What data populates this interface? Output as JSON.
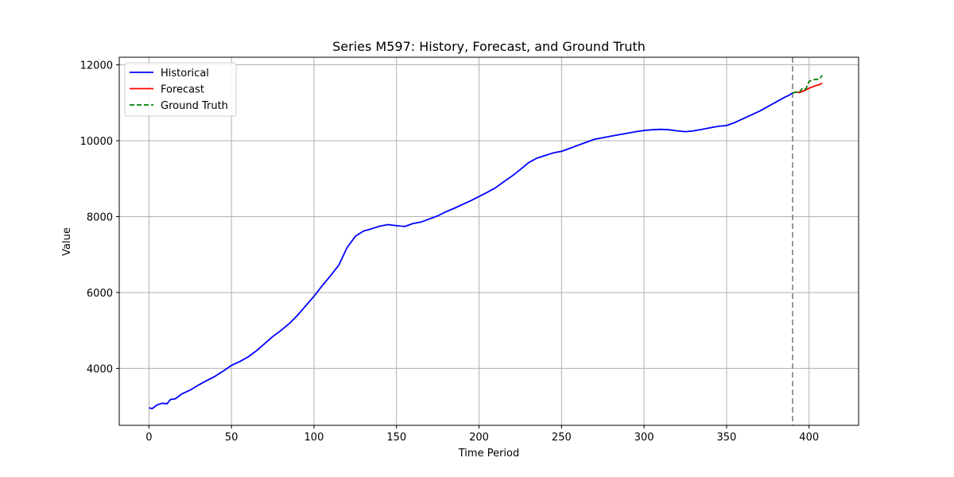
{
  "chart_data": {
    "type": "line",
    "title": "Series M597: History, Forecast, and Ground Truth",
    "xlabel": "Time Period",
    "ylabel": "Value",
    "xlim": [
      -18,
      430
    ],
    "ylim": [
      2500,
      12200
    ],
    "xticks": [
      0,
      50,
      100,
      150,
      200,
      250,
      300,
      350,
      400
    ],
    "yticks": [
      4000,
      6000,
      8000,
      10000,
      12000
    ],
    "grid": true,
    "legend_position": "top-left",
    "forecast_start": 390,
    "series": [
      {
        "name": "Historical",
        "color": "#0000ff",
        "style": "solid",
        "points": [
          [
            0,
            2960
          ],
          [
            2,
            2940
          ],
          [
            5,
            3040
          ],
          [
            8,
            3080
          ],
          [
            11,
            3070
          ],
          [
            13,
            3180
          ],
          [
            16,
            3200
          ],
          [
            20,
            3330
          ],
          [
            25,
            3430
          ],
          [
            30,
            3560
          ],
          [
            35,
            3680
          ],
          [
            40,
            3790
          ],
          [
            45,
            3930
          ],
          [
            50,
            4080
          ],
          [
            55,
            4180
          ],
          [
            60,
            4300
          ],
          [
            65,
            4460
          ],
          [
            70,
            4650
          ],
          [
            75,
            4840
          ],
          [
            80,
            5000
          ],
          [
            85,
            5180
          ],
          [
            90,
            5400
          ],
          [
            95,
            5650
          ],
          [
            100,
            5900
          ],
          [
            105,
            6180
          ],
          [
            110,
            6440
          ],
          [
            115,
            6720
          ],
          [
            120,
            7180
          ],
          [
            125,
            7480
          ],
          [
            130,
            7620
          ],
          [
            135,
            7680
          ],
          [
            140,
            7750
          ],
          [
            145,
            7790
          ],
          [
            150,
            7760
          ],
          [
            155,
            7740
          ],
          [
            160,
            7820
          ],
          [
            165,
            7860
          ],
          [
            170,
            7940
          ],
          [
            175,
            8020
          ],
          [
            180,
            8130
          ],
          [
            185,
            8220
          ],
          [
            190,
            8320
          ],
          [
            195,
            8420
          ],
          [
            200,
            8530
          ],
          [
            205,
            8640
          ],
          [
            210,
            8760
          ],
          [
            215,
            8920
          ],
          [
            220,
            9070
          ],
          [
            225,
            9240
          ],
          [
            230,
            9420
          ],
          [
            235,
            9540
          ],
          [
            240,
            9610
          ],
          [
            245,
            9680
          ],
          [
            250,
            9720
          ],
          [
            255,
            9800
          ],
          [
            260,
            9880
          ],
          [
            265,
            9960
          ],
          [
            270,
            10040
          ],
          [
            275,
            10080
          ],
          [
            280,
            10120
          ],
          [
            285,
            10160
          ],
          [
            290,
            10200
          ],
          [
            295,
            10240
          ],
          [
            300,
            10270
          ],
          [
            305,
            10290
          ],
          [
            310,
            10300
          ],
          [
            315,
            10290
          ],
          [
            320,
            10260
          ],
          [
            325,
            10240
          ],
          [
            330,
            10260
          ],
          [
            335,
            10300
          ],
          [
            340,
            10340
          ],
          [
            345,
            10380
          ],
          [
            350,
            10400
          ],
          [
            355,
            10480
          ],
          [
            360,
            10580
          ],
          [
            365,
            10680
          ],
          [
            370,
            10780
          ],
          [
            375,
            10900
          ],
          [
            380,
            11020
          ],
          [
            385,
            11140
          ],
          [
            388,
            11200
          ],
          [
            390,
            11260
          ]
        ]
      },
      {
        "name": "Forecast",
        "color": "#ff0000",
        "style": "solid",
        "points": [
          [
            390,
            11260
          ],
          [
            392,
            11280
          ],
          [
            394,
            11270
          ],
          [
            396,
            11300
          ],
          [
            398,
            11340
          ],
          [
            400,
            11380
          ],
          [
            402,
            11420
          ],
          [
            404,
            11450
          ],
          [
            406,
            11470
          ],
          [
            408,
            11520
          ]
        ]
      },
      {
        "name": "Ground Truth",
        "color": "#008000",
        "style": "dashed",
        "points": [
          [
            390,
            11260
          ],
          [
            392,
            11280
          ],
          [
            394,
            11270
          ],
          [
            396,
            11380
          ],
          [
            398,
            11360
          ],
          [
            400,
            11560
          ],
          [
            402,
            11600
          ],
          [
            404,
            11620
          ],
          [
            406,
            11620
          ],
          [
            408,
            11720
          ]
        ]
      }
    ]
  }
}
